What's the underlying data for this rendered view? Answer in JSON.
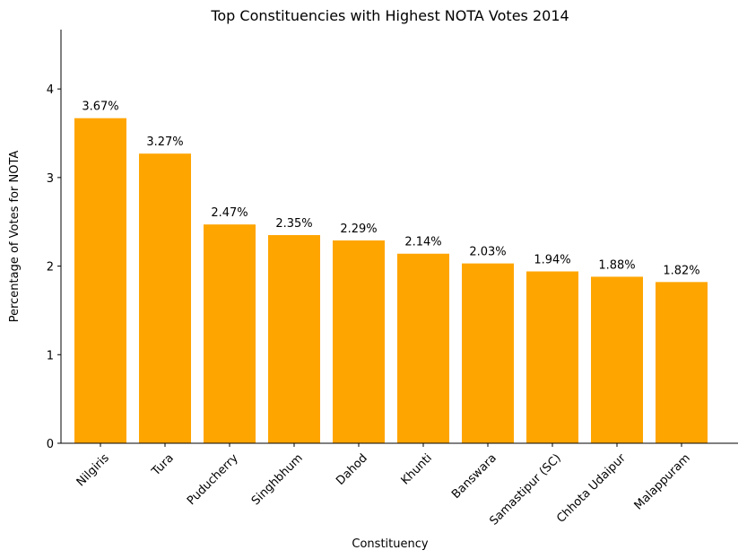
{
  "chart_data": {
    "type": "bar",
    "title": "Top Constituencies with Highest NOTA Votes 2014",
    "xlabel": "Constituency",
    "ylabel": "Percentage of Votes for NOTA",
    "categories": [
      "Nilgiris",
      "Tura",
      "Puducherry",
      "Singhbhum",
      "Dahod",
      "Khunti",
      "Banswara",
      "Samastipur (SC)",
      "Chhota Udaipur",
      "Malappuram"
    ],
    "values": [
      3.67,
      3.27,
      2.47,
      2.35,
      2.29,
      2.14,
      2.03,
      1.94,
      1.88,
      1.82
    ],
    "data_labels": [
      "3.67%",
      "3.27%",
      "2.47%",
      "2.35%",
      "2.29%",
      "2.14%",
      "2.03%",
      "1.94%",
      "1.88%",
      "1.82%"
    ],
    "yticks": [
      0,
      1,
      2,
      3,
      4
    ],
    "ylim": [
      0,
      4.67
    ],
    "grid": false,
    "bar_color": "#ffa500"
  }
}
